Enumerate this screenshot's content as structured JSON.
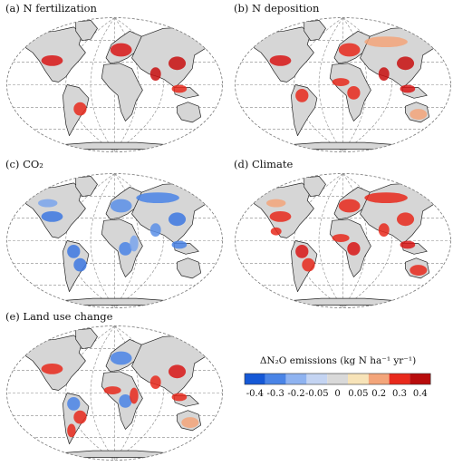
{
  "panels": [
    {
      "id": "a",
      "title": "(a) N fertilization",
      "scheme": "fert"
    },
    {
      "id": "b",
      "title": "(b) N deposition",
      "scheme": "dep"
    },
    {
      "id": "c",
      "title": "(c) CO₂",
      "scheme": "co2"
    },
    {
      "id": "d",
      "title": "(d) Climate",
      "scheme": "clim"
    },
    {
      "id": "e",
      "title": "(e) Land use change",
      "scheme": "luc"
    }
  ],
  "legend": {
    "title": "ΔN₂O emissions (kg N ha⁻¹ yr⁻¹)",
    "ticks": [
      "-0.4",
      "-0.3",
      "-0.2",
      "-0.05",
      "0",
      "0.05",
      "0.2",
      "0.3",
      "0.4"
    ],
    "colors": [
      "#1558d6",
      "#4a84e6",
      "#8fb3f0",
      "#c4d4f2",
      "#d9d9d9",
      "#f7e3b8",
      "#f3a57a",
      "#e8291c",
      "#b80c0c"
    ]
  }
}
